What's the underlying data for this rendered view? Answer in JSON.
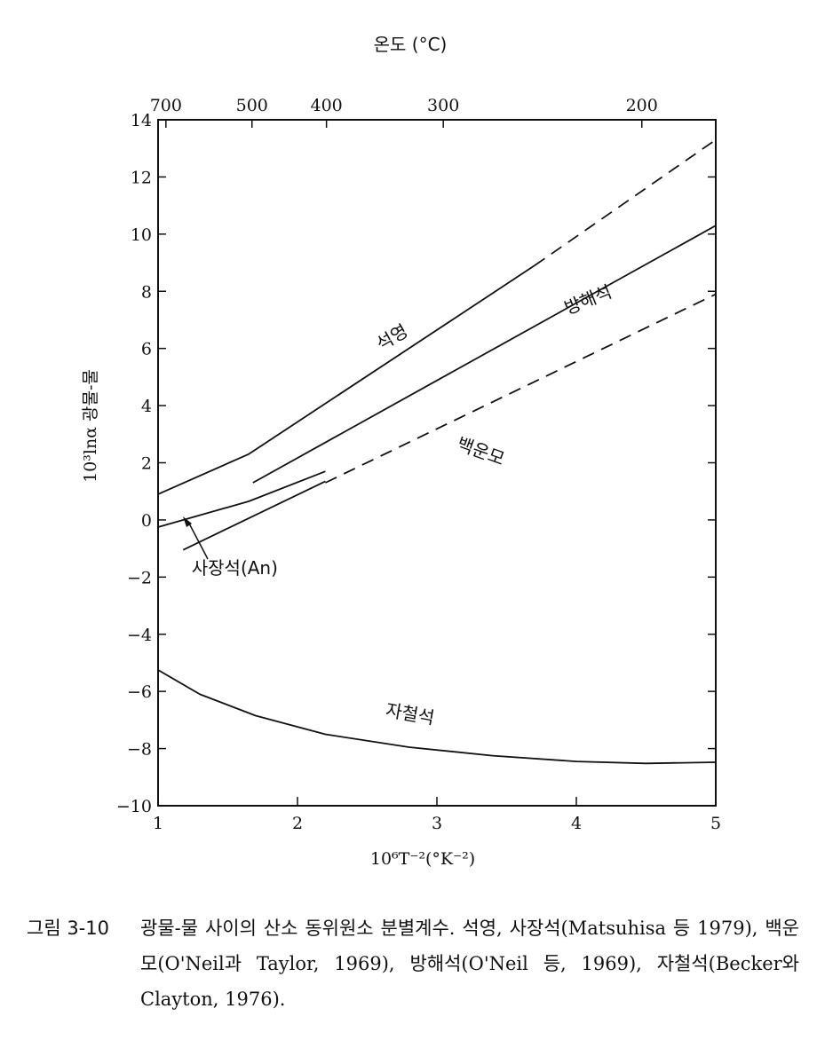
{
  "chart_data": {
    "type": "line",
    "title": "",
    "xlabel": "10⁶T⁻²(°K⁻²)",
    "ylabel": "10³lnα 광물-물",
    "top_axis_label": "온도 (°C)",
    "xlim": [
      1,
      5
    ],
    "ylim": [
      -10,
      14
    ],
    "x_ticks": [
      "1",
      "2",
      "3",
      "4",
      "5"
    ],
    "y_ticks": [
      "14",
      "12",
      "10",
      "8",
      "6",
      "4",
      "2",
      "0",
      "−2",
      "−4",
      "−6",
      "−8",
      "−10"
    ],
    "top_ticks": [
      "700",
      "500",
      "400",
      "300",
      "200"
    ],
    "grid": false,
    "series": [
      {
        "name": "석영",
        "points": [
          [
            1.0,
            0.9
          ],
          [
            1.65,
            2.3
          ],
          [
            3.7,
            8.9
          ]
        ],
        "dashed_points": [
          [
            3.7,
            8.9
          ],
          [
            5.0,
            13.3
          ]
        ]
      },
      {
        "name": "방해석",
        "points": [
          [
            1.68,
            1.3
          ],
          [
            5.0,
            10.3
          ]
        ]
      },
      {
        "name": "백운모",
        "points": [
          [
            2.2,
            1.3
          ],
          [
            5.0,
            7.9
          ]
        ],
        "dashed": true
      },
      {
        "name": "사장석(An)",
        "points": [
          [
            1.0,
            -0.25
          ],
          [
            1.65,
            0.65
          ],
          [
            2.2,
            1.7
          ]
        ]
      },
      {
        "name": "",
        "points": [
          [
            1.18,
            -1.05
          ],
          [
            2.2,
            1.35
          ]
        ]
      },
      {
        "name": "자철석",
        "points": [
          [
            1.0,
            -5.25
          ],
          [
            1.3,
            -6.1
          ],
          [
            1.7,
            -6.85
          ],
          [
            2.2,
            -7.5
          ],
          [
            2.8,
            -7.95
          ],
          [
            3.4,
            -8.25
          ],
          [
            4.0,
            -8.45
          ],
          [
            4.5,
            -8.52
          ],
          [
            5.0,
            -8.48
          ]
        ]
      }
    ],
    "annotations": [
      {
        "text": "석영",
        "x": 2.7,
        "y": 6.2
      },
      {
        "text": "방해석",
        "x": 4.1,
        "y": 7.5
      },
      {
        "text": "백운모",
        "x": 3.3,
        "y": 2.2
      },
      {
        "text": "사장석(An)",
        "x": 1.55,
        "y": -1.9
      },
      {
        "text": "자철석",
        "x": 2.8,
        "y": -7.0
      }
    ]
  },
  "caption": {
    "label": "그림 3-10",
    "text": "광물-물 사이의 산소 동위원소 분별계수. 석영, 사장석(Matsuhisa 등 1979), 백운모(O'Neil과 Taylor, 1969), 방해석(O'Neil 등, 1969), 자철석(Becker와 Clayton, 1976)."
  }
}
